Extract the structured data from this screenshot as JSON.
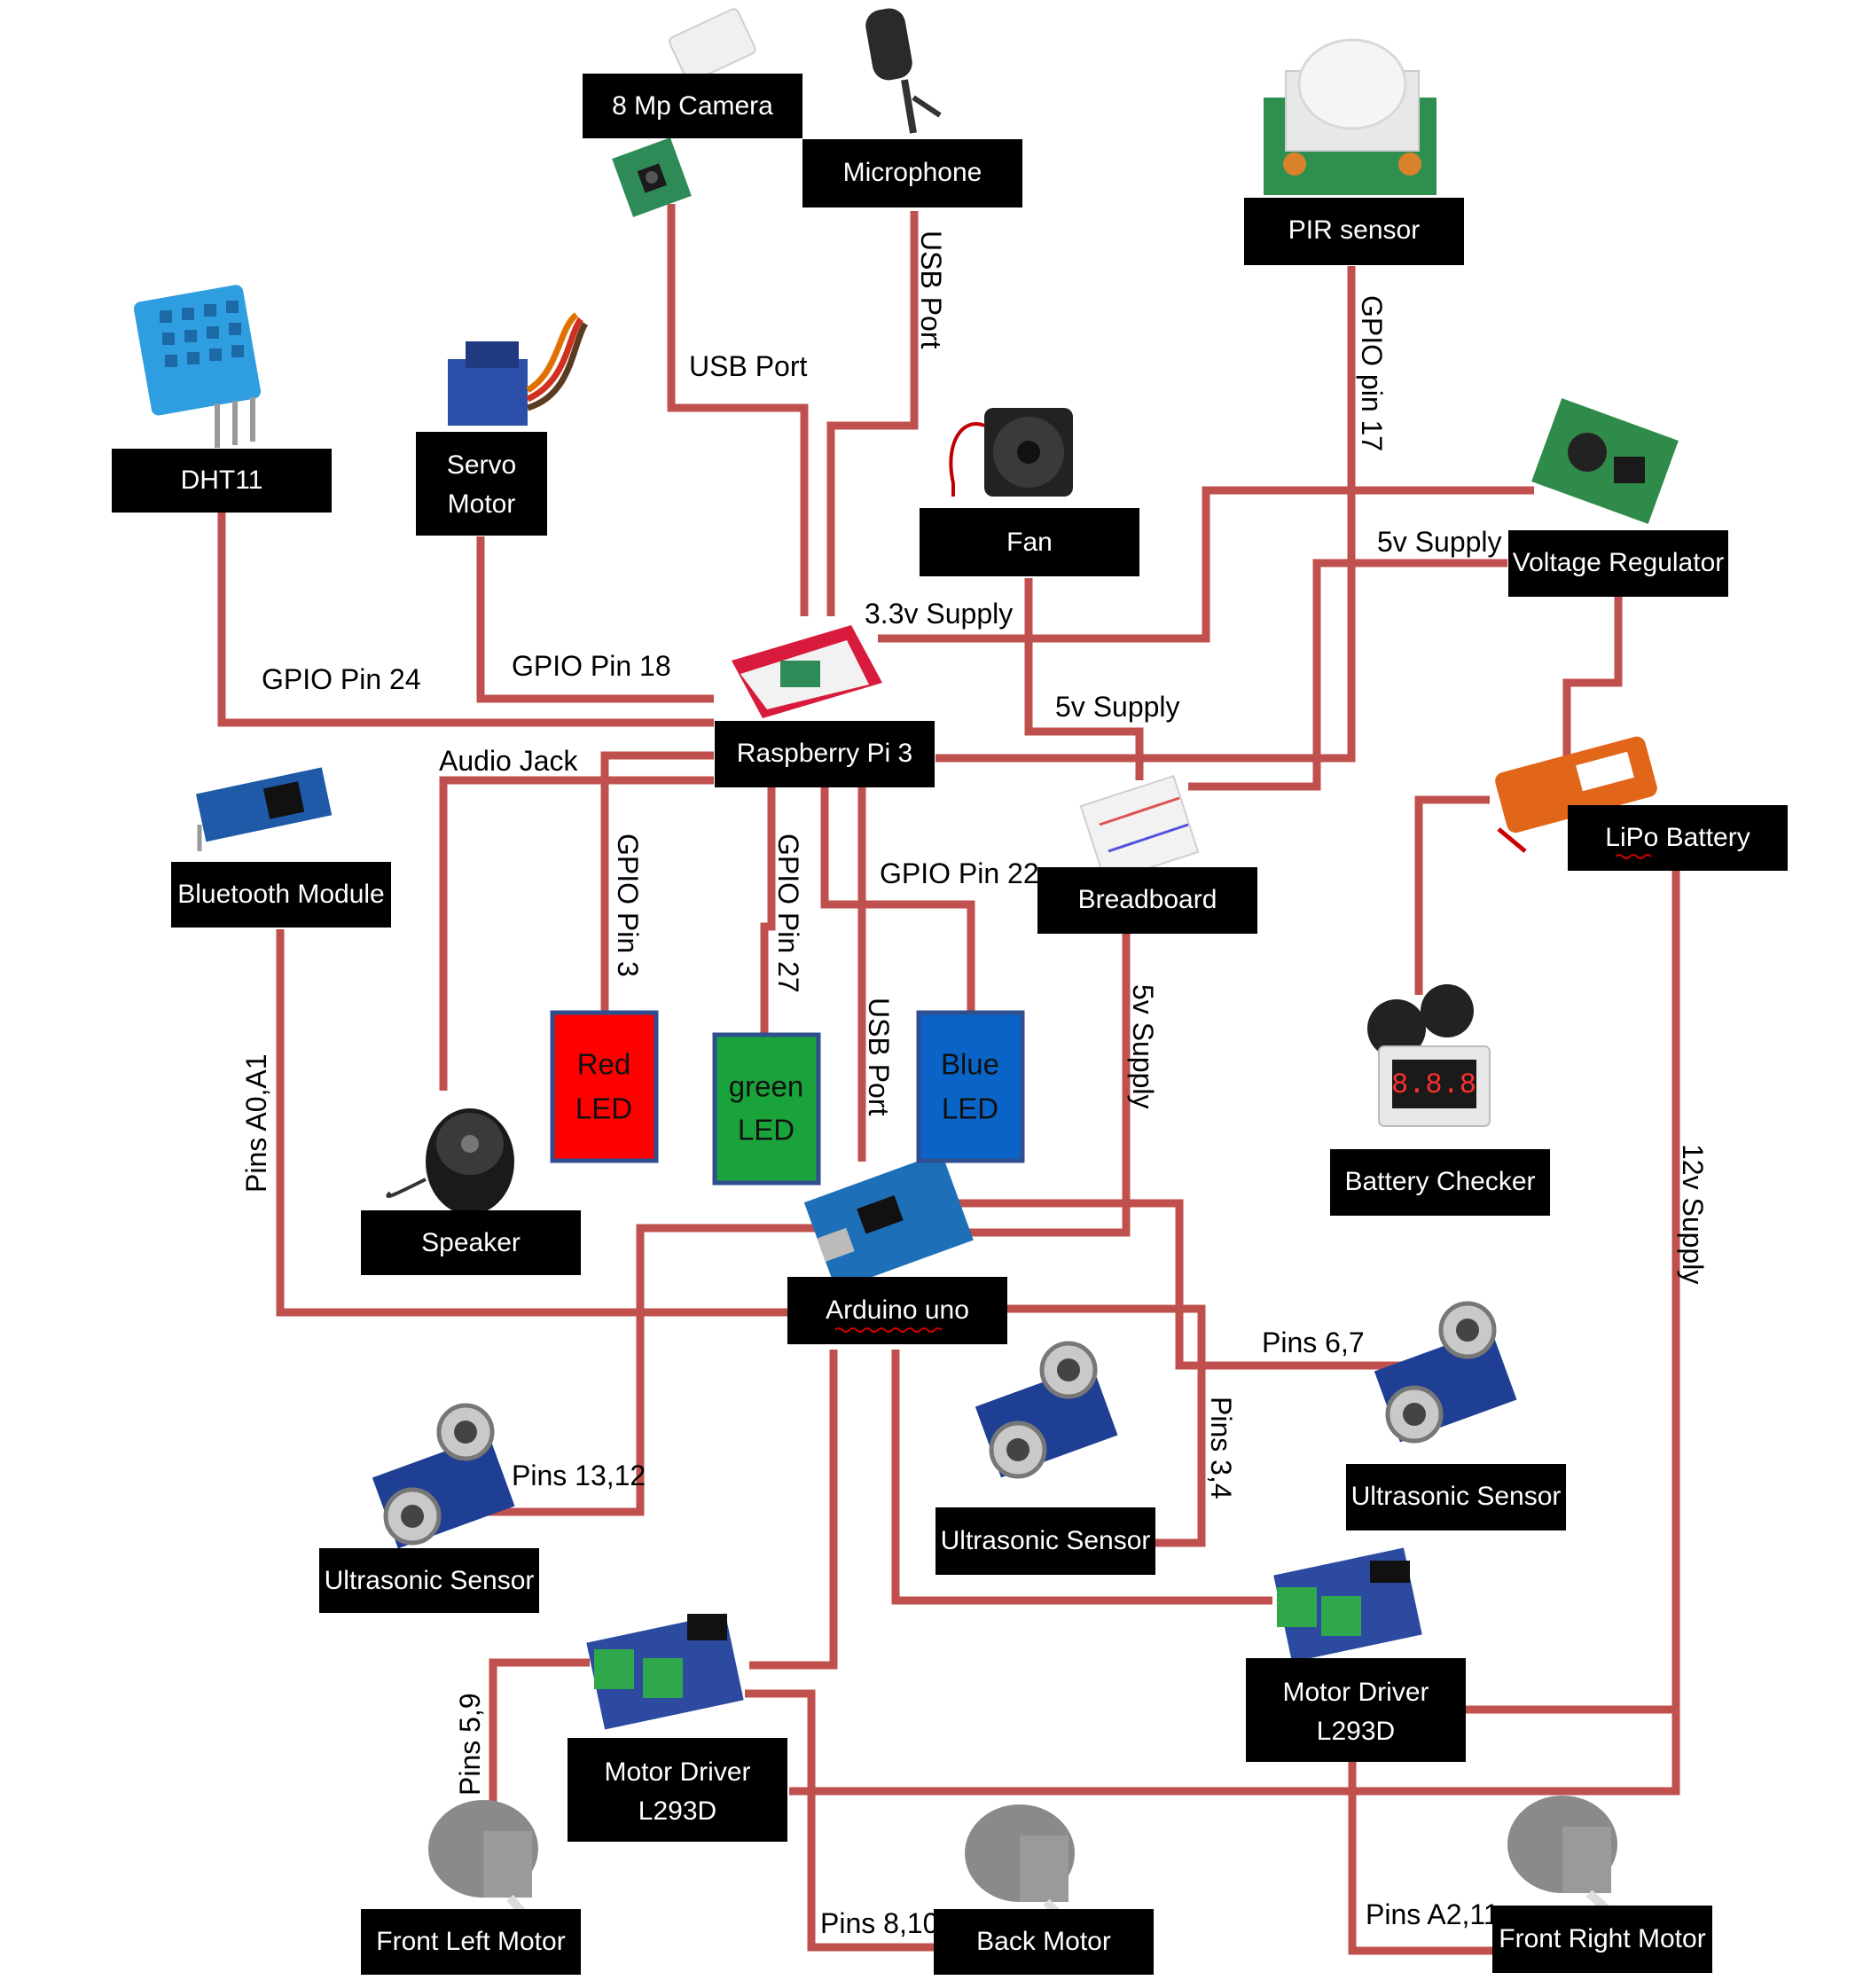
{
  "components": {
    "camera": "8 Mp Camera",
    "microphone": "Microphone",
    "pir": "PIR sensor",
    "dht11": "DHT11",
    "servo_line1": "Servo",
    "servo_line2": "Motor",
    "fan": "Fan",
    "voltage_regulator": "Voltage Regulator",
    "raspberry": "Raspberry Pi 3",
    "bluetooth": "Bluetooth Module",
    "breadboard": "Breadboard",
    "lipo": "LiPo Battery",
    "red_led_1": "Red",
    "red_led_2": "LED",
    "green_led_1": "green",
    "green_led_2": "LED",
    "blue_led_1": "Blue",
    "blue_led_2": "LED",
    "battery_checker": "Battery Checker",
    "speaker": "Speaker",
    "arduino": "Arduino uno",
    "ultrasonic_right": "Ultrasonic Sensor",
    "ultrasonic_center": "Ultrasonic Sensor",
    "ultrasonic_left": "Ultrasonic Sensor",
    "motor_driver_right_1": "Motor Driver",
    "motor_driver_right_2": "L293D",
    "motor_driver_left_1": "Motor Driver",
    "motor_driver_left_2": "L293D",
    "front_left_motor": "Front Left Motor",
    "back_motor": "Back Motor",
    "front_right_motor": "Front Right Motor"
  },
  "connections": {
    "camera_usb": "USB Port",
    "mic_usb": "USB Port",
    "pir_gpio": "GPIO pin 17",
    "dht_gpio": "GPIO Pin 24",
    "servo_gpio": "GPIO Pin 18",
    "supply_33": "3.3v Supply",
    "supply_5v_reg": "5v Supply",
    "supply_5v_fan": "5v Supply",
    "audio_jack": "Audio Jack",
    "red_gpio": "GPIO Pin 3",
    "green_gpio": "GPIO Pin 27",
    "blue_gpio": "GPIO Pin  22",
    "arduino_usb": "USB Port",
    "breadboard_5v": "5v Supply",
    "bt_pins": "Pins A0,A1",
    "supply_12v": "12v Supply",
    "pins_67": "Pins 6,7",
    "pins_34": "Pins  3,4",
    "pins_1312": "Pins 13,12",
    "pins_59": "Pins 5,9",
    "pins_810": "Pins  8,10",
    "pins_a211": "Pins   A2,11"
  },
  "colors": {
    "wire": "#c0504d",
    "label_box": "#000000",
    "red_led": "#ff0000",
    "green_led": "#1aa33a",
    "blue_led": "#0a64c8",
    "led_border": "#2f4f8f"
  },
  "icons": [
    "camera-icon",
    "microphone-icon",
    "pir-sensor-icon",
    "dht11-sensor-icon",
    "servo-motor-icon",
    "fan-icon",
    "voltage-regulator-icon",
    "raspberry-pi-icon",
    "bluetooth-module-icon",
    "breadboard-icon",
    "lipo-battery-icon",
    "battery-checker-icon",
    "speaker-icon",
    "arduino-icon",
    "ultrasonic-sensor-icon",
    "motor-driver-icon",
    "dc-motor-icon"
  ]
}
